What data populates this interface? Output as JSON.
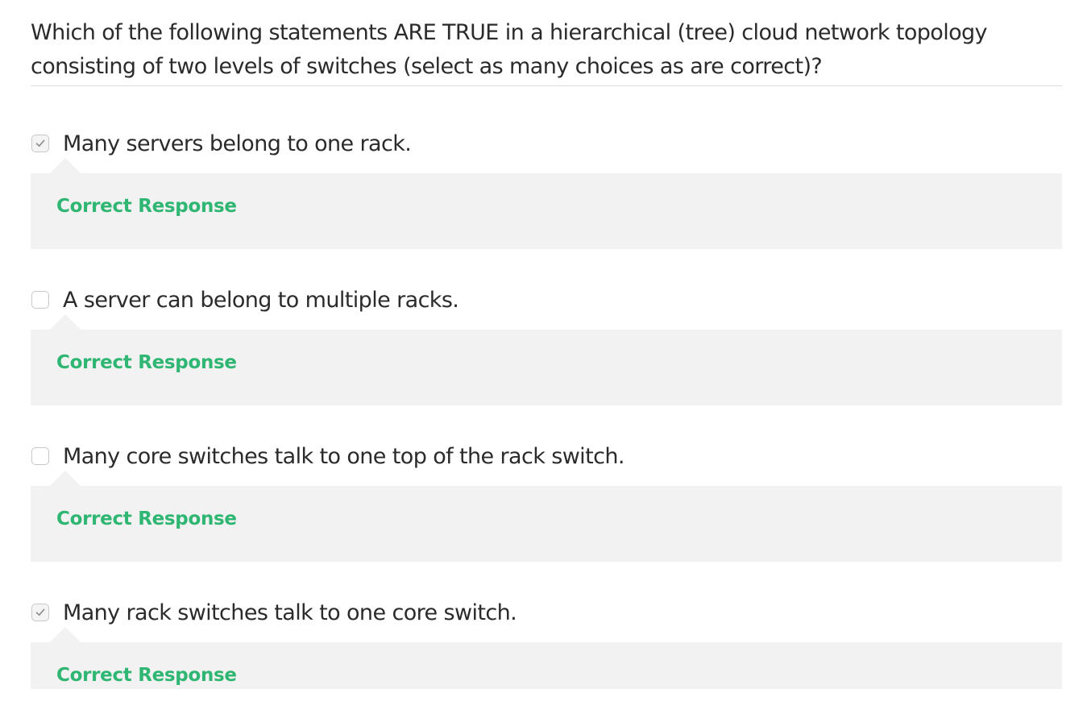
{
  "question": {
    "line1": "Which of the following statements ARE TRUE in a hierarchical (tree) cloud network topology",
    "line2": "consisting of two levels of switches (select as many choices as are correct)?"
  },
  "options": [
    {
      "label": "Many servers belong to one rack.",
      "checked": true,
      "feedback": "Correct Response"
    },
    {
      "label": "A server can belong to multiple racks.",
      "checked": false,
      "feedback": "Correct Response"
    },
    {
      "label": "Many core switches talk to one top of the rack switch.",
      "checked": false,
      "feedback": "Correct Response"
    },
    {
      "label": "Many rack switches talk to one core switch.",
      "checked": true,
      "feedback": "Correct Response"
    }
  ],
  "colors": {
    "correct": "#2fb673",
    "feedback_bg": "#f2f2f2",
    "text": "#2b2b2b"
  },
  "icons": {
    "checked": "checkmark-icon"
  }
}
